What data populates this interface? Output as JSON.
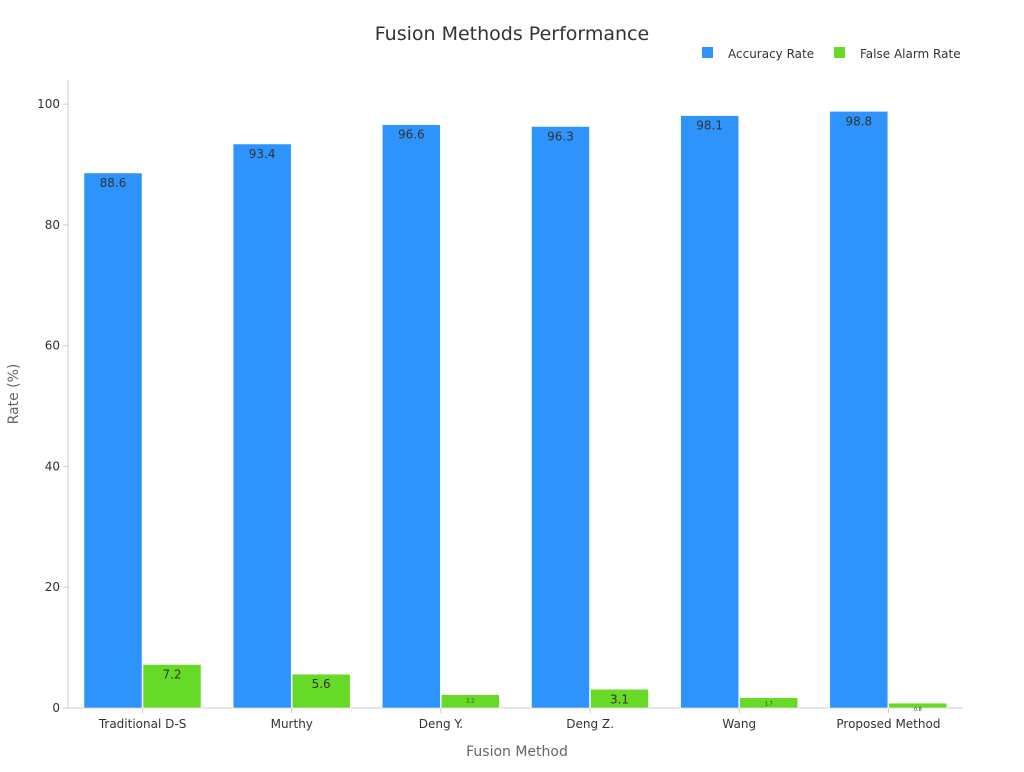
{
  "chart_data": {
    "type": "bar",
    "title": "Fusion Methods Performance",
    "xlabel": "Fusion Method",
    "ylabel": "Rate (%)",
    "categories": [
      "Traditional D-S",
      "Murthy",
      "Deng Y.",
      "Deng Z.",
      "Wang",
      "Proposed Method"
    ],
    "series": [
      {
        "name": "Accuracy Rate",
        "color": "#2e93fa",
        "values": [
          88.6,
          93.4,
          96.6,
          96.3,
          98.1,
          98.8
        ]
      },
      {
        "name": "False Alarm Rate",
        "color": "#66da26",
        "values": [
          7.2,
          5.6,
          2.2,
          3.1,
          1.7,
          0.8
        ]
      }
    ],
    "ylim": [
      0,
      104
    ],
    "yticks": [
      0,
      20,
      40,
      60,
      80,
      100
    ],
    "legend_position": "top-right",
    "grid": false
  }
}
